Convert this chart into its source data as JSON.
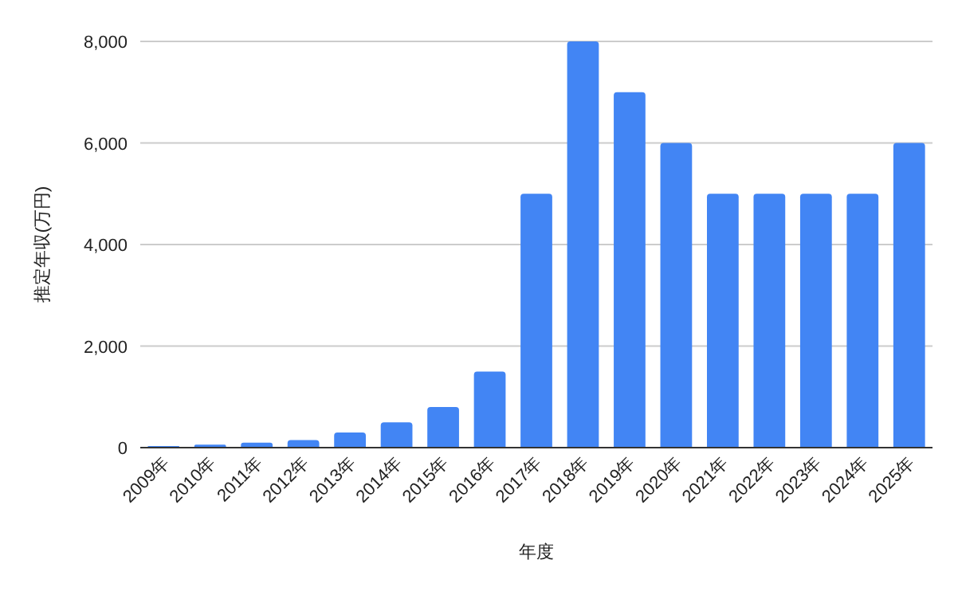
{
  "chart_data": {
    "type": "bar",
    "xlabel": "年度",
    "ylabel": "推定年収(万円)",
    "categories": [
      "2009年",
      "2010年",
      "2011年",
      "2012年",
      "2013年",
      "2014年",
      "2015年",
      "2016年",
      "2017年",
      "2018年",
      "2019年",
      "2020年",
      "2021年",
      "2022年",
      "2023年",
      "2024年",
      "2025年"
    ],
    "values": [
      30,
      60,
      100,
      150,
      300,
      500,
      800,
      1500,
      5000,
      8000,
      7000,
      6000,
      5000,
      5000,
      5000,
      5000,
      6000
    ],
    "color": "#4285f4",
    "ylim": [
      0,
      8000
    ],
    "yticks": [
      {
        "value": 0,
        "label": "0"
      },
      {
        "value": 2000,
        "label": "2,000"
      },
      {
        "value": 4000,
        "label": "4,000"
      },
      {
        "value": 6000,
        "label": "6,000"
      },
      {
        "value": 8000,
        "label": "8,000"
      }
    ],
    "grid": "y"
  }
}
